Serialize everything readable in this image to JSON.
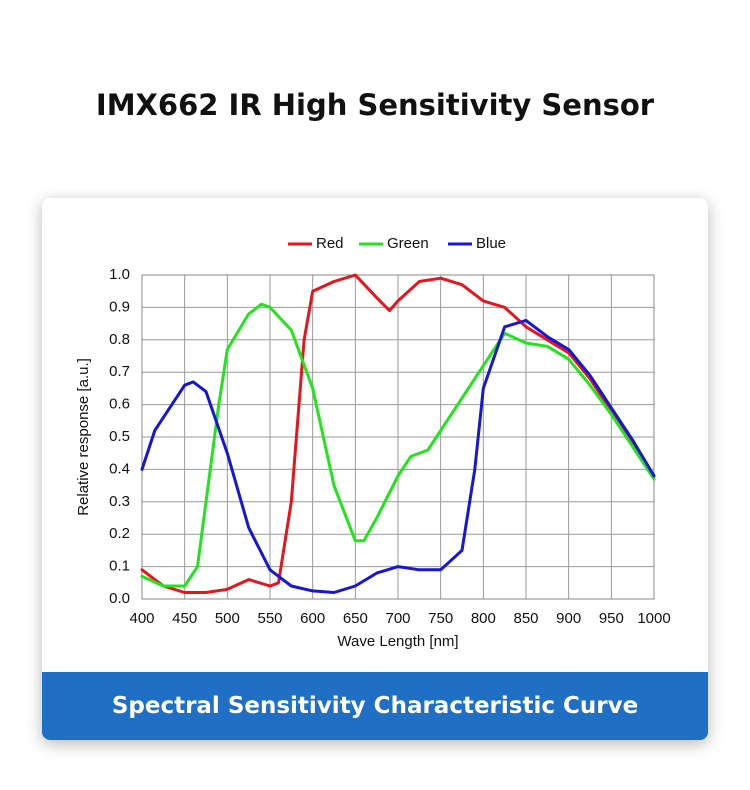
{
  "page_title": "IMX662 IR High Sensitivity Sensor",
  "banner": "Spectral Sensitivity Characteristic Curve",
  "chart_data": {
    "type": "line",
    "xlabel": "Wave Length [nm]",
    "ylabel": "Relative response [a.u.]",
    "xlim": [
      400,
      1000
    ],
    "ylim": [
      0,
      1
    ],
    "xticks": [
      400,
      450,
      500,
      550,
      600,
      650,
      700,
      750,
      800,
      850,
      900,
      950,
      1000
    ],
    "yticks": [
      {
        "value": 0,
        "label": "0.0"
      },
      0.1,
      0.2,
      0.3,
      0.4,
      0.5,
      0.6,
      0.7,
      0.8,
      0.9,
      {
        "value": 1,
        "label": "1.0"
      }
    ],
    "grid": true,
    "legend": "top",
    "series": [
      {
        "name": "Red",
        "color": "#e8141b",
        "x": [
          400,
          425,
          450,
          475,
          500,
          525,
          550,
          560,
          575,
          590,
          600,
          625,
          650,
          675,
          690,
          700,
          725,
          750,
          775,
          800,
          825,
          850,
          875,
          900,
          925,
          950,
          975,
          1000
        ],
        "values": [
          0.09,
          0.04,
          0.02,
          0.02,
          0.03,
          0.06,
          0.04,
          0.05,
          0.3,
          0.8,
          0.95,
          0.98,
          1.0,
          0.93,
          0.89,
          0.92,
          0.98,
          0.99,
          0.97,
          0.92,
          0.9,
          0.84,
          0.8,
          0.76,
          0.68,
          0.58,
          0.48,
          0.38
        ]
      },
      {
        "name": "Green",
        "color": "#22e41c",
        "x": [
          400,
          425,
          450,
          465,
          475,
          490,
          500,
          525,
          540,
          550,
          575,
          600,
          625,
          650,
          660,
          675,
          700,
          715,
          735,
          750,
          775,
          800,
          825,
          850,
          875,
          900,
          925,
          950,
          975,
          1000
        ],
        "values": [
          0.07,
          0.04,
          0.04,
          0.1,
          0.3,
          0.6,
          0.77,
          0.88,
          0.91,
          0.9,
          0.83,
          0.65,
          0.35,
          0.18,
          0.18,
          0.25,
          0.38,
          0.44,
          0.46,
          0.52,
          0.62,
          0.72,
          0.82,
          0.79,
          0.78,
          0.74,
          0.66,
          0.57,
          0.47,
          0.37
        ]
      },
      {
        "name": "Blue",
        "color": "#1616d8",
        "x": [
          400,
          415,
          425,
          450,
          460,
          475,
          500,
          525,
          550,
          575,
          600,
          625,
          650,
          675,
          700,
          725,
          750,
          775,
          790,
          800,
          825,
          850,
          875,
          900,
          925,
          950,
          975,
          1000
        ],
        "values": [
          0.4,
          0.52,
          0.56,
          0.66,
          0.67,
          0.64,
          0.45,
          0.22,
          0.09,
          0.04,
          0.025,
          0.02,
          0.04,
          0.08,
          0.1,
          0.09,
          0.09,
          0.15,
          0.4,
          0.65,
          0.84,
          0.86,
          0.81,
          0.77,
          0.69,
          0.59,
          0.49,
          0.38
        ]
      }
    ]
  }
}
